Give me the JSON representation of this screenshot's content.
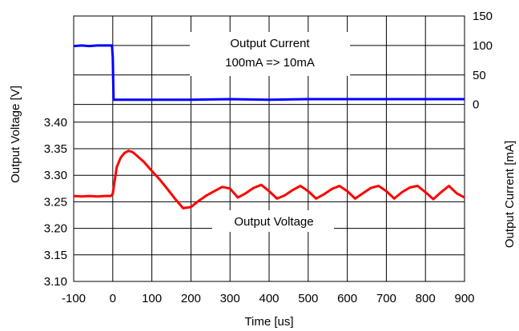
{
  "chart_data": {
    "type": "line",
    "xlabel": "Time [us]",
    "ylabel_left": "Output Voltage [V]",
    "ylabel_right": "Output Current [mA]",
    "x_ticks": [
      "-100",
      "0",
      "100",
      "200",
      "300",
      "400",
      "500",
      "600",
      "700",
      "800",
      "900"
    ],
    "xlim": [
      -100,
      900
    ],
    "y_left_ticks": [
      "3.10",
      "3.15",
      "3.20",
      "3.25",
      "3.30",
      "3.35",
      "3.40"
    ],
    "y_left_range": [
      3.1,
      3.6
    ],
    "y_right_ticks": [
      "0",
      "50",
      "100",
      "150"
    ],
    "y_right_range": [
      -300,
      150
    ],
    "grid": true,
    "annotations": [
      {
        "id": "current",
        "lines": [
          "Output Current",
          "100mA => 10mA"
        ]
      },
      {
        "id": "voltage",
        "lines": [
          "Output Voltage"
        ]
      }
    ],
    "series": [
      {
        "name": "Output Voltage",
        "axis": "left",
        "color": "#ff0000",
        "x": [
          -100,
          -80,
          -60,
          -40,
          -20,
          -5,
          0,
          5,
          10,
          20,
          30,
          40,
          50,
          60,
          80,
          100,
          120,
          140,
          160,
          180,
          200,
          220,
          240,
          260,
          280,
          300,
          320,
          340,
          360,
          380,
          400,
          420,
          440,
          460,
          480,
          500,
          520,
          540,
          560,
          580,
          600,
          620,
          640,
          660,
          680,
          700,
          720,
          740,
          760,
          780,
          800,
          820,
          840,
          860,
          880,
          900
        ],
        "y": [
          3.261,
          3.26,
          3.261,
          3.26,
          3.261,
          3.261,
          3.265,
          3.29,
          3.315,
          3.333,
          3.342,
          3.346,
          3.344,
          3.338,
          3.325,
          3.308,
          3.292,
          3.274,
          3.255,
          3.238,
          3.24,
          3.252,
          3.262,
          3.27,
          3.278,
          3.275,
          3.258,
          3.266,
          3.276,
          3.282,
          3.27,
          3.256,
          3.262,
          3.272,
          3.28,
          3.27,
          3.256,
          3.264,
          3.274,
          3.28,
          3.27,
          3.256,
          3.266,
          3.276,
          3.28,
          3.27,
          3.256,
          3.268,
          3.277,
          3.28,
          3.268,
          3.255,
          3.268,
          3.28,
          3.266,
          3.258
        ]
      },
      {
        "name": "Output Current",
        "axis": "right",
        "color": "#0000ff",
        "x": [
          -100,
          -80,
          -60,
          -40,
          -20,
          -2,
          0,
          2,
          10,
          50,
          100,
          200,
          300,
          400,
          500,
          600,
          700,
          800,
          900
        ],
        "y": [
          99,
          100,
          99,
          100,
          100,
          100,
          80,
          8,
          8,
          8,
          8,
          8,
          9,
          8,
          9,
          9,
          9,
          9,
          9
        ]
      }
    ]
  }
}
